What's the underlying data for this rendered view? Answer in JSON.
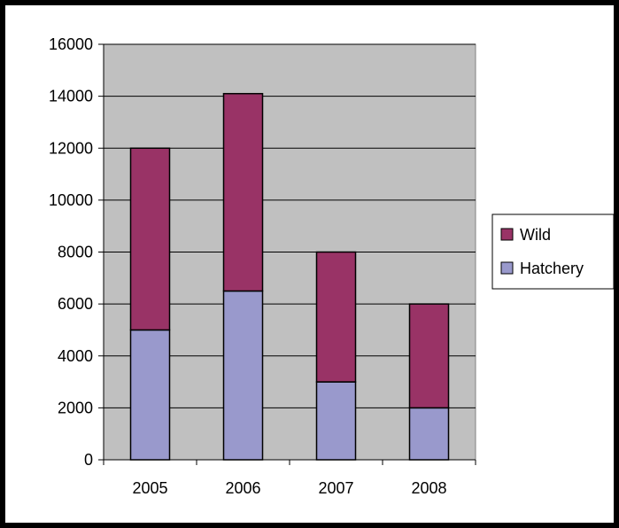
{
  "chart_data": {
    "type": "bar",
    "stacked": true,
    "title": "",
    "xlabel": "",
    "ylabel": "",
    "categories": [
      "2005",
      "2006",
      "2007",
      "2008"
    ],
    "ylim": [
      0,
      16000
    ],
    "yticks": [
      0,
      2000,
      4000,
      6000,
      8000,
      10000,
      12000,
      14000,
      16000
    ],
    "grid": true,
    "legend_position": "right",
    "series": [
      {
        "name": "Hatchery",
        "values": [
          5000,
          6500,
          3000,
          2000
        ],
        "color": "#9999cc"
      },
      {
        "name": "Wild",
        "values": [
          7000,
          7600,
          5000,
          4000
        ],
        "color": "#993366"
      }
    ],
    "legend_order": [
      "Wild",
      "Hatchery"
    ],
    "plot_background": "#c0c0c0",
    "page_border_color": "#000000"
  }
}
